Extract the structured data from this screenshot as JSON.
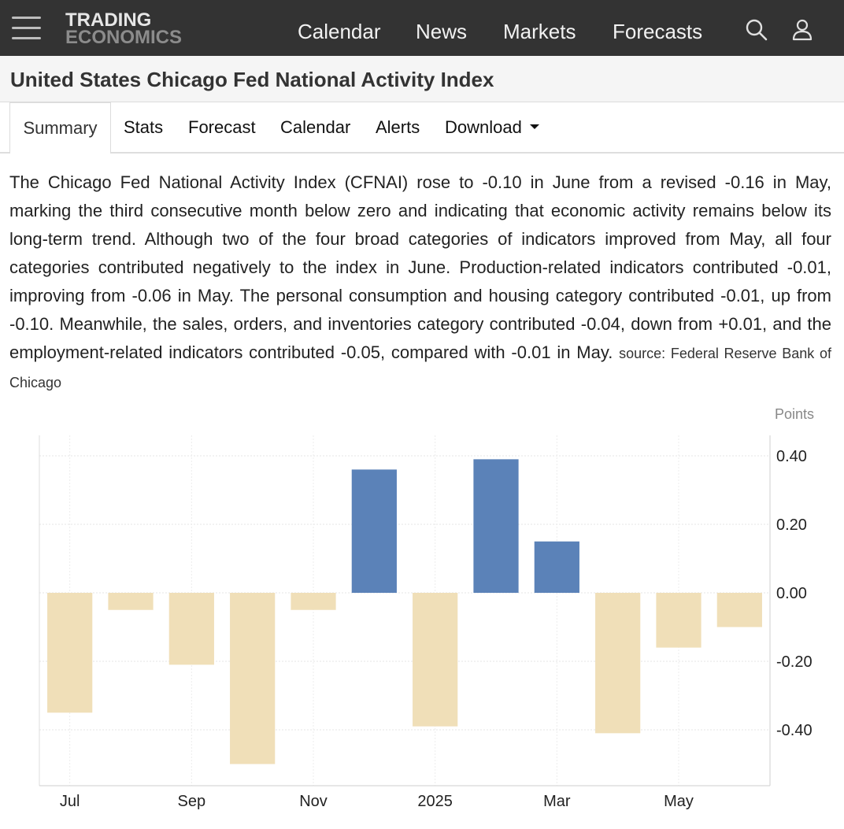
{
  "nav": {
    "logo_line1": "TRADING",
    "logo_line2": "ECONOMICS",
    "links": [
      "Calendar",
      "News",
      "Markets",
      "Forecasts"
    ],
    "icons": [
      "search-icon",
      "user-icon"
    ]
  },
  "page": {
    "title": "United States Chicago Fed National Activity Index"
  },
  "tabs": {
    "items": [
      "Summary",
      "Stats",
      "Forecast",
      "Calendar",
      "Alerts",
      "Download"
    ],
    "active": "Summary"
  },
  "summary": {
    "text": "The Chicago Fed National Activity Index (CFNAI) rose to -0.10 in June from a revised -0.16 in May, marking the third consecutive month below zero and indicating that economic activity remains below its long-term trend. Although two of the four broad categories of indicators improved from May, all four categories contributed negatively to the index in June. Production-related indicators contributed -0.01, improving from -0.06 in May. The personal consumption and housing category contributed -0.01, up from -0.10. Meanwhile, the sales, orders, and inventories category contributed -0.04, down from +0.01, and the employment-related indicators contributed -0.05, compared with -0.01 in May.",
    "source": "source: Federal Reserve Bank of Chicago"
  },
  "colors": {
    "positive": "#5b82b8",
    "negative": "#f0dfb8",
    "navbar": "#333333"
  },
  "chart_data": {
    "type": "bar",
    "unit_label": "Points",
    "categories": [
      "Jul 2024",
      "Aug 2024",
      "Sep 2024",
      "Oct 2024",
      "Nov 2024",
      "Dec 2024",
      "Jan 2025",
      "Feb 2025",
      "Mar 2025",
      "Apr 2025",
      "May 2025",
      "Jun 2025"
    ],
    "values": [
      -0.35,
      -0.05,
      -0.21,
      -0.5,
      -0.05,
      0.36,
      -0.39,
      0.39,
      0.15,
      -0.41,
      -0.16,
      -0.1
    ],
    "x_tick_labels": [
      {
        "label": "Jul",
        "index": 0
      },
      {
        "label": "Sep",
        "index": 2
      },
      {
        "label": "Nov",
        "index": 4
      },
      {
        "label": "2025",
        "index": 6
      },
      {
        "label": "Mar",
        "index": 8
      },
      {
        "label": "May",
        "index": 10
      }
    ],
    "y_ticks": [
      0.4,
      0.2,
      0.0,
      -0.2,
      -0.4
    ],
    "y_tick_labels": [
      "0.40",
      "0.20",
      "0.00",
      "-0.20",
      "-0.40"
    ],
    "ylim": [
      -0.57,
      0.41
    ],
    "yaxis_side": "right",
    "grid": true
  }
}
